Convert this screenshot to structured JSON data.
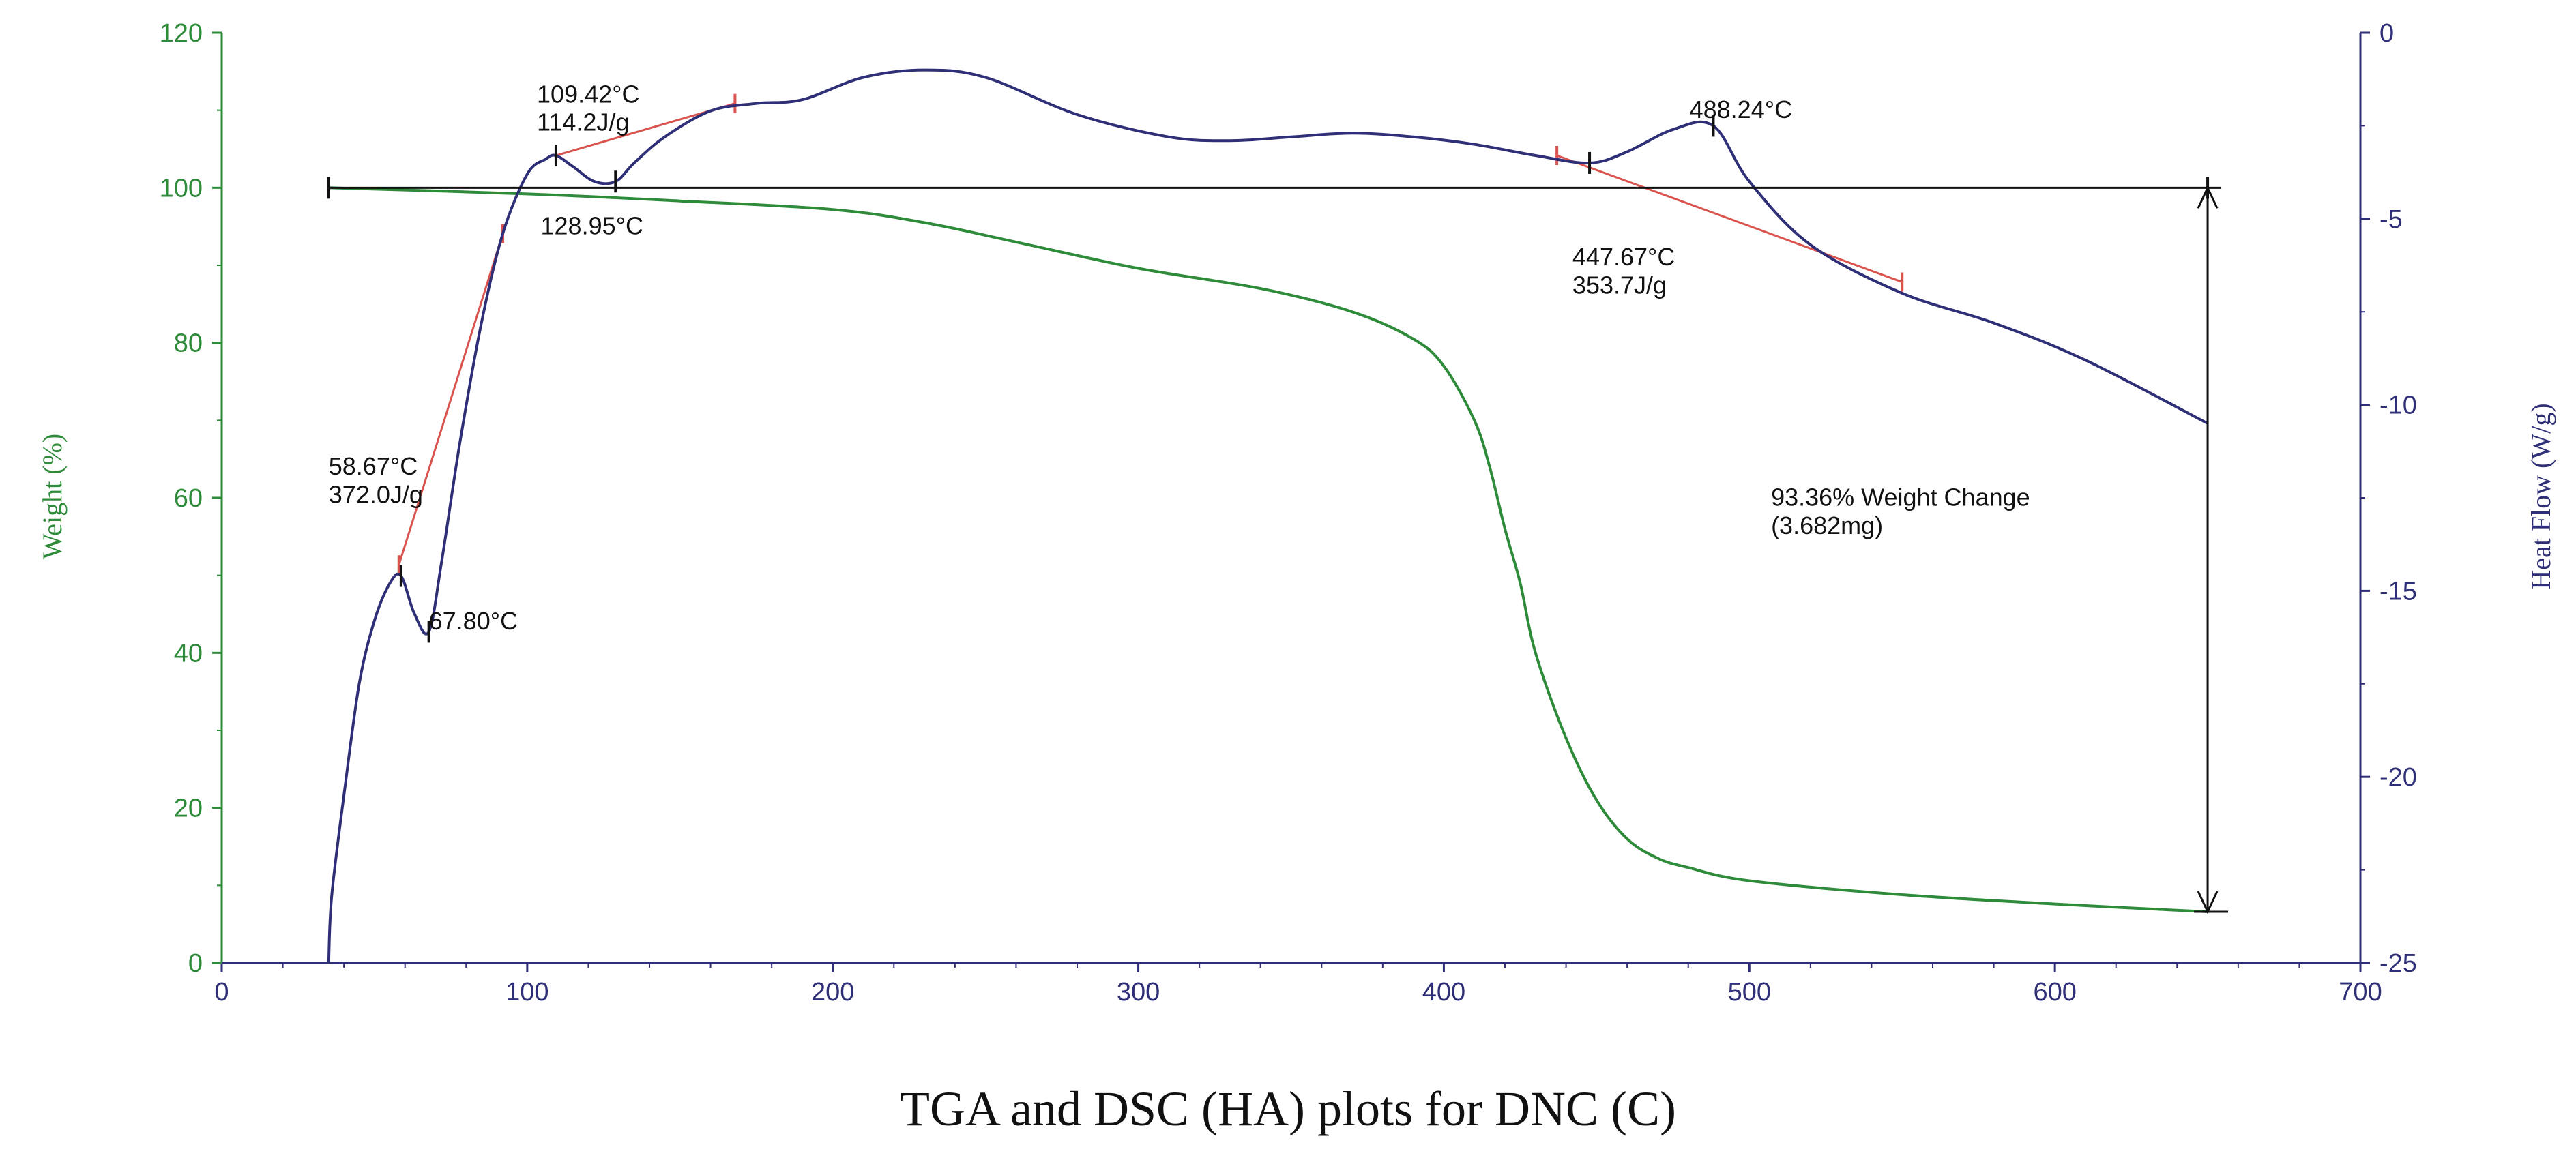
{
  "caption": "TGA and DSC (HA) plots for DNC (C)",
  "colors": {
    "weight": "#2e8b3a",
    "heat": "#2f2f78",
    "tangent": "#d9534f",
    "annotation": "#111111"
  },
  "chart_data": {
    "type": "line",
    "title": "",
    "xlabel": "",
    "xlim": [
      0,
      700
    ],
    "x_ticks": [
      "0",
      "100",
      "200",
      "300",
      "400",
      "500",
      "600",
      "700"
    ],
    "ylabel_left": "Weight (%)",
    "ylim_left": [
      0,
      120
    ],
    "y_ticks_left": [
      "0",
      "20",
      "40",
      "60",
      "80",
      "100",
      "120"
    ],
    "ylabel_right": "Heat Flow (W/g)",
    "ylim_right": [
      -25,
      0
    ],
    "y_ticks_right": [
      "-25",
      "-20",
      "-15",
      "-10",
      "-5",
      "0"
    ],
    "grid": false,
    "series": [
      {
        "name": "Weight (%)",
        "axis": "left",
        "points": [
          [
            35,
            100
          ],
          [
            100,
            99.2
          ],
          [
            150,
            98.3
          ],
          [
            200,
            97.2
          ],
          [
            230,
            95.5
          ],
          [
            260,
            93
          ],
          [
            300,
            89.6
          ],
          [
            340,
            87
          ],
          [
            370,
            84
          ],
          [
            390,
            80.5
          ],
          [
            400,
            77
          ],
          [
            410,
            70
          ],
          [
            415,
            64
          ],
          [
            420,
            56
          ],
          [
            425,
            49
          ],
          [
            430,
            40
          ],
          [
            440,
            29
          ],
          [
            450,
            21
          ],
          [
            460,
            16
          ],
          [
            470,
            13.5
          ],
          [
            480,
            12.3
          ],
          [
            500,
            10.6
          ],
          [
            550,
            8.8
          ],
          [
            600,
            7.6
          ],
          [
            650,
            6.6
          ]
        ]
      },
      {
        "name": "Heat Flow (W/g)",
        "axis": "right",
        "points": [
          [
            35,
            -25
          ],
          [
            36,
            -23.2
          ],
          [
            40,
            -20.5
          ],
          [
            45,
            -17.5
          ],
          [
            50,
            -15.8
          ],
          [
            55,
            -14.8
          ],
          [
            58.7,
            -14.6
          ],
          [
            63,
            -15.6
          ],
          [
            67.8,
            -16.1
          ],
          [
            72,
            -14.2
          ],
          [
            78,
            -11
          ],
          [
            85,
            -7.8
          ],
          [
            92,
            -5.4
          ],
          [
            100,
            -3.8
          ],
          [
            106,
            -3.4
          ],
          [
            109.4,
            -3.3
          ],
          [
            115,
            -3.6
          ],
          [
            122,
            -4.0
          ],
          [
            128.9,
            -4.0
          ],
          [
            135,
            -3.5
          ],
          [
            145,
            -2.8
          ],
          [
            160,
            -2.1
          ],
          [
            175,
            -1.9
          ],
          [
            190,
            -1.8
          ],
          [
            210,
            -1.2
          ],
          [
            230,
            -1.0
          ],
          [
            250,
            -1.2
          ],
          [
            280,
            -2.2
          ],
          [
            310,
            -2.8
          ],
          [
            330,
            -2.9
          ],
          [
            350,
            -2.8
          ],
          [
            370,
            -2.7
          ],
          [
            390,
            -2.8
          ],
          [
            410,
            -3.0
          ],
          [
            430,
            -3.3
          ],
          [
            447.7,
            -3.5
          ],
          [
            460,
            -3.2
          ],
          [
            475,
            -2.6
          ],
          [
            488.2,
            -2.5
          ],
          [
            500,
            -4.0
          ],
          [
            520,
            -5.7
          ],
          [
            550,
            -7.0
          ],
          [
            580,
            -7.8
          ],
          [
            610,
            -8.8
          ],
          [
            650,
            -10.5
          ]
        ]
      }
    ],
    "tangent_lines": [
      {
        "axis": "right",
        "from": [
          58,
          -14.3
        ],
        "to": [
          92,
          -5.4
        ]
      },
      {
        "axis": "right",
        "from": [
          109.4,
          -3.3
        ],
        "to": [
          168,
          -1.9
        ]
      },
      {
        "axis": "right",
        "from": [
          437,
          -3.3
        ],
        "to": [
          550,
          -6.7
        ]
      }
    ],
    "peak_markers": [
      {
        "axis": "right",
        "x": 58.7
      },
      {
        "axis": "right",
        "x": 67.8
      },
      {
        "axis": "right",
        "x": 109.4
      },
      {
        "axis": "right",
        "x": 128.9
      },
      {
        "axis": "right",
        "x": 447.7
      },
      {
        "axis": "right",
        "x": 488.2
      }
    ],
    "annotations": [
      {
        "name": "peak-58",
        "lines": [
          "58.67°C",
          "372.0J/g"
        ],
        "x": 58.67,
        "axis": "left",
        "y": 63
      },
      {
        "name": "peak-67",
        "lines": [
          "67.80°C"
        ],
        "x": 67.8,
        "axis": "left",
        "y": 43
      },
      {
        "name": "peak-109",
        "lines": [
          "109.42°C",
          "114.2J/g"
        ],
        "x": 109.42,
        "axis": "left",
        "y": 111
      },
      {
        "name": "peak-128",
        "lines": [
          "128.95°C"
        ],
        "x": 128.95,
        "axis": "left",
        "y": 94
      },
      {
        "name": "peak-447",
        "lines": [
          "447.67°C",
          "353.7J/g"
        ],
        "x": 447.67,
        "axis": "left",
        "y": 90
      },
      {
        "name": "peak-488",
        "lines": [
          "488.24°C"
        ],
        "x": 488.24,
        "axis": "left",
        "y": 109
      },
      {
        "name": "weight-change",
        "lines": [
          "93.36% Weight Change",
          "(3.682mg)"
        ],
        "x": 650,
        "axis": "left",
        "y": 59
      }
    ],
    "weight_change": {
      "baseline_y": 100,
      "baseline_x": [
        35,
        650
      ],
      "bottom_y": 6.6,
      "percent": "93.36%",
      "mass": "3.682mg"
    }
  }
}
